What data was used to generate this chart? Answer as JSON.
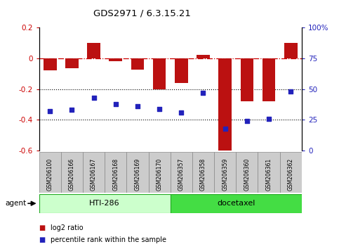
{
  "title": "GDS2971 / 6.3.15.21",
  "samples": [
    "GSM206100",
    "GSM206166",
    "GSM206167",
    "GSM206168",
    "GSM206169",
    "GSM206170",
    "GSM206357",
    "GSM206358",
    "GSM206359",
    "GSM206360",
    "GSM206361",
    "GSM206362"
  ],
  "log2_ratio": [
    -0.08,
    -0.065,
    0.1,
    -0.02,
    -0.075,
    -0.2,
    -0.16,
    0.02,
    -0.62,
    -0.28,
    -0.28,
    0.1
  ],
  "percentile_rank": [
    32,
    33,
    43,
    38,
    36,
    34,
    31,
    47,
    18,
    24,
    26,
    48
  ],
  "bar_color": "#bb1111",
  "dot_color": "#2222bb",
  "ylim": [
    -0.6,
    0.2
  ],
  "right_ylim": [
    0,
    100
  ],
  "right_yticks": [
    0,
    25,
    50,
    75,
    100
  ],
  "right_yticklabels": [
    "0",
    "25",
    "50",
    "75",
    "100%"
  ],
  "left_yticks": [
    -0.6,
    -0.4,
    -0.2,
    0.0,
    0.2
  ],
  "left_yticklabels": [
    "-0.6",
    "-0.4",
    "-0.2",
    "0",
    "0.2"
  ],
  "hline_y": 0.0,
  "hline_color": "#cc0000",
  "dotted_lines": [
    -0.2,
    -0.4
  ],
  "group1_label": "HTI-286",
  "group1_color": "#ccffcc",
  "group1_indices": [
    0,
    5
  ],
  "group2_label": "docetaxel",
  "group2_color": "#44dd44",
  "group2_indices": [
    6,
    11
  ],
  "agent_label": "agent",
  "legend_bar_label": "log2 ratio",
  "legend_dot_label": "percentile rank within the sample",
  "bar_width": 0.6
}
